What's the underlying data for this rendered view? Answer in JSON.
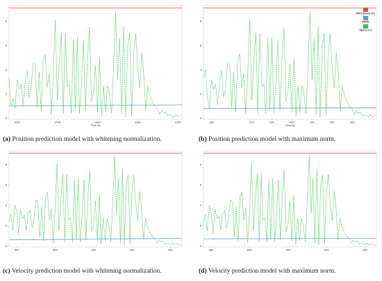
{
  "colors": {
    "max_speed": "#e05050",
    "rmse": "#5aa0c8",
    "speed": "#33cc44"
  },
  "chart_data": [
    {
      "type": "line",
      "id": "a",
      "caption_tag": "(a)",
      "caption_text": " Position prediction model with whitening normalization.",
      "xlabel": "Time (s)",
      "xlim": [
        1416,
        1502
      ],
      "ylim": [
        -0.1,
        9.3
      ],
      "xticks": [
        1420,
        1440,
        1460,
        1480,
        1500
      ],
      "yticks": [
        0,
        2,
        4,
        6,
        8
      ],
      "legend": null,
      "series": [
        {
          "name": "MAX Speed m/s",
          "style": "solid",
          "color_key": "max_speed",
          "x": [
            1416,
            1502
          ],
          "y": [
            9.1,
            9.1
          ]
        },
        {
          "name": "RMSE",
          "style": "solid",
          "color_key": "rmse",
          "x": [
            1416,
            1502
          ],
          "y": [
            1.0,
            1.1
          ]
        },
        {
          "name": "Speed m/s",
          "style": "dashed",
          "color_key": "speed",
          "x": [
            1416,
            1417,
            1418,
            1419,
            1420,
            1421,
            1422,
            1423,
            1424,
            1425,
            1426,
            1427,
            1428,
            1429,
            1430,
            1431,
            1432,
            1433,
            1434,
            1435,
            1436,
            1437,
            1438,
            1439,
            1440,
            1441,
            1442,
            1443,
            1444,
            1445,
            1446,
            1447,
            1448,
            1449,
            1450,
            1451,
            1452,
            1453,
            1454,
            1455,
            1456,
            1457,
            1458,
            1459,
            1460,
            1461,
            1462,
            1463,
            1464,
            1465,
            1466,
            1467,
            1468,
            1469,
            1470,
            1471,
            1472,
            1473,
            1474,
            1475,
            1476,
            1477,
            1478,
            1479,
            1480,
            1481,
            1482,
            1483,
            1484,
            1485,
            1486,
            1487,
            1488,
            1489,
            1490,
            1491,
            1492,
            1493,
            1494,
            1495,
            1496,
            1497,
            1498,
            1499,
            1500,
            1501,
            1502
          ],
          "y": [
            3.3,
            1.0,
            1.6,
            0.8,
            3.2,
            2.4,
            2.8,
            1.1,
            3.0,
            3.9,
            1.7,
            2.5,
            4.6,
            4.5,
            0.9,
            3.8,
            0.5,
            4.8,
            5.3,
            2.5,
            3.7,
            0.3,
            3.6,
            8.1,
            1.5,
            4.7,
            7.1,
            0.4,
            7.0,
            2.6,
            2.8,
            0.4,
            6.5,
            0.7,
            6.6,
            0.4,
            2.9,
            6.5,
            0.6,
            4.7,
            7.5,
            1.4,
            2.1,
            4.4,
            0.5,
            5.0,
            0.2,
            2.7,
            0.5,
            2.7,
            2.0,
            0.4,
            4.3,
            8.8,
            3.2,
            6.6,
            0.3,
            7.6,
            0.1,
            6.0,
            7.0,
            0.2,
            5.3,
            7.0,
            4.1,
            2.5,
            5.4,
            3.7,
            0.6,
            2.7,
            1.9,
            1.5,
            1.1,
            0.9,
            0.7,
            0.3,
            0.6,
            0.4,
            0.5,
            0.2,
            0.3,
            0.2,
            0.1,
            0.3,
            0.1,
            0.2,
            0.2
          ]
        }
      ]
    },
    {
      "type": "line",
      "id": "b",
      "caption_tag": "(b)",
      "caption_text": " Position prediction model with maximum norm.",
      "xlabel": "Time (s)",
      "xlim": [
        386,
        472
      ],
      "ylim": [
        -0.1,
        9.3
      ],
      "xticks": [
        390,
        410,
        420,
        430,
        440,
        450,
        460
      ],
      "yticks": [
        0,
        2,
        4,
        6,
        8
      ],
      "legend": [
        {
          "label": "MAX Speed m/s",
          "color_key": "max_speed"
        },
        {
          "label": "RMSE",
          "color_key": "rmse"
        },
        {
          "label": "Speed m/s",
          "color_key": "speed"
        }
      ],
      "series": [
        {
          "name": "MAX Speed m/s",
          "style": "solid",
          "color_key": "max_speed",
          "x": [
            386,
            472
          ],
          "y": [
            9.1,
            9.1
          ]
        },
        {
          "name": "RMSE",
          "style": "solid",
          "color_key": "rmse",
          "x": [
            386,
            472
          ],
          "y": [
            0.8,
            0.85
          ]
        },
        {
          "name": "Speed m/s",
          "style": "dashed",
          "color_key": "speed",
          "x": [
            386,
            387,
            388,
            389,
            390,
            391,
            392,
            393,
            394,
            395,
            396,
            397,
            398,
            399,
            400,
            401,
            402,
            403,
            404,
            405,
            406,
            407,
            408,
            409,
            410,
            411,
            412,
            413,
            414,
            415,
            416,
            417,
            418,
            419,
            420,
            421,
            422,
            423,
            424,
            425,
            426,
            427,
            428,
            429,
            430,
            431,
            432,
            433,
            434,
            435,
            436,
            437,
            438,
            439,
            440,
            441,
            442,
            443,
            444,
            445,
            446,
            447,
            448,
            449,
            450,
            451,
            452,
            453,
            454,
            455,
            456,
            457,
            458,
            459,
            460,
            461,
            462,
            463,
            464,
            465,
            466,
            467,
            468,
            469,
            470,
            471,
            472
          ],
          "y": [
            3.3,
            4.0,
            1.6,
            0.8,
            3.2,
            2.4,
            2.8,
            1.1,
            3.0,
            3.9,
            1.7,
            2.5,
            4.6,
            4.5,
            0.9,
            3.8,
            0.5,
            4.8,
            5.3,
            2.5,
            3.7,
            0.3,
            3.6,
            8.1,
            1.5,
            4.7,
            7.1,
            0.4,
            7.0,
            2.6,
            2.8,
            0.4,
            6.5,
            0.7,
            6.6,
            0.4,
            2.9,
            6.5,
            0.6,
            4.7,
            7.5,
            1.4,
            2.1,
            4.4,
            0.5,
            5.0,
            0.2,
            2.7,
            0.5,
            2.7,
            2.0,
            0.4,
            4.3,
            8.8,
            3.2,
            6.6,
            0.3,
            7.6,
            0.1,
            6.0,
            7.0,
            0.2,
            5.3,
            7.0,
            4.1,
            2.5,
            5.4,
            3.7,
            0.6,
            2.7,
            1.9,
            1.5,
            1.1,
            0.9,
            0.7,
            0.3,
            0.6,
            0.4,
            0.5,
            0.2,
            0.3,
            0.2,
            0.1,
            0.3,
            0.1,
            0.2,
            0.2
          ]
        }
      ]
    },
    {
      "type": "line",
      "id": "c",
      "caption_tag": "(c)",
      "caption_text": " Velocity prediction model with whitening normalization.",
      "xlabel": "",
      "xlim": [
        856,
        946
      ],
      "ylim": [
        -0.1,
        9.3
      ],
      "xticks": [
        860,
        880,
        900,
        920,
        940
      ],
      "yticks": [
        0,
        2,
        4,
        6,
        8
      ],
      "legend": null,
      "series": [
        {
          "name": "MAX Speed m/s",
          "style": "solid",
          "color_key": "max_speed",
          "x": [
            856,
            946
          ],
          "y": [
            9.1,
            9.1
          ]
        },
        {
          "name": "RMSE",
          "style": "solid",
          "color_key": "rmse",
          "x": [
            856,
            946
          ],
          "y": [
            0.6,
            0.75
          ]
        },
        {
          "name": "Speed m/s",
          "style": "dashed",
          "color_key": "speed",
          "x": [
            856,
            857,
            858,
            859,
            860,
            861,
            862,
            863,
            864,
            865,
            866,
            867,
            868,
            869,
            870,
            871,
            872,
            873,
            874,
            875,
            876,
            877,
            878,
            879,
            880,
            881,
            882,
            883,
            884,
            885,
            886,
            887,
            888,
            889,
            890,
            891,
            892,
            893,
            894,
            895,
            896,
            897,
            898,
            899,
            900,
            901,
            902,
            903,
            904,
            905,
            906,
            907,
            908,
            909,
            910,
            911,
            912,
            913,
            914,
            915,
            916,
            917,
            918,
            919,
            920,
            921,
            922,
            923,
            924,
            925,
            926,
            927,
            928,
            929,
            930,
            931,
            932,
            933,
            934,
            935,
            936,
            937,
            938,
            939,
            940,
            941,
            942,
            943,
            944,
            945,
            946
          ],
          "y": [
            2.4,
            3.1,
            1.5,
            4.0,
            3.4,
            1.2,
            3.6,
            2.7,
            3.0,
            1.5,
            3.2,
            3.5,
            1.8,
            2.6,
            4.5,
            4.4,
            0.9,
            3.8,
            0.5,
            4.8,
            5.3,
            2.5,
            3.7,
            0.3,
            3.6,
            8.1,
            1.5,
            4.7,
            7.1,
            0.4,
            7.0,
            2.6,
            2.8,
            0.4,
            6.5,
            0.7,
            6.6,
            0.4,
            2.9,
            6.5,
            0.6,
            4.7,
            7.5,
            1.4,
            2.1,
            4.4,
            0.5,
            5.0,
            0.2,
            2.7,
            0.5,
            2.7,
            2.0,
            0.4,
            4.3,
            8.8,
            3.2,
            6.6,
            0.3,
            7.6,
            0.1,
            6.0,
            7.0,
            0.2,
            5.3,
            7.0,
            4.1,
            2.5,
            5.4,
            3.7,
            0.6,
            2.7,
            1.9,
            1.5,
            1.1,
            0.9,
            0.7,
            0.3,
            0.6,
            0.4,
            0.5,
            0.2,
            0.3,
            0.2,
            0.1,
            0.3,
            0.1,
            0.2,
            0.2,
            0.1,
            0.1
          ]
        }
      ]
    },
    {
      "type": "line",
      "id": "d",
      "caption_tag": "(d)",
      "caption_text": " Velocity prediction model with maximum norm.",
      "xlabel": "",
      "xlim": [
        856,
        946
      ],
      "ylim": [
        -0.1,
        9.3
      ],
      "xticks": [
        860,
        880,
        900,
        920,
        940
      ],
      "yticks": [
        0,
        2,
        4,
        6,
        8
      ],
      "legend": null,
      "series": [
        {
          "name": "MAX Speed m/s",
          "style": "solid",
          "color_key": "max_speed",
          "x": [
            856,
            946
          ],
          "y": [
            9.1,
            9.1
          ]
        },
        {
          "name": "RMSE",
          "style": "solid",
          "color_key": "rmse",
          "x": [
            856,
            946
          ],
          "y": [
            0.7,
            0.75
          ]
        },
        {
          "name": "Speed m/s",
          "style": "dashed",
          "color_key": "speed",
          "x": [
            856,
            857,
            858,
            859,
            860,
            861,
            862,
            863,
            864,
            865,
            866,
            867,
            868,
            869,
            870,
            871,
            872,
            873,
            874,
            875,
            876,
            877,
            878,
            879,
            880,
            881,
            882,
            883,
            884,
            885,
            886,
            887,
            888,
            889,
            890,
            891,
            892,
            893,
            894,
            895,
            896,
            897,
            898,
            899,
            900,
            901,
            902,
            903,
            904,
            905,
            906,
            907,
            908,
            909,
            910,
            911,
            912,
            913,
            914,
            915,
            916,
            917,
            918,
            919,
            920,
            921,
            922,
            923,
            924,
            925,
            926,
            927,
            928,
            929,
            930,
            931,
            932,
            933,
            934,
            935,
            936,
            937,
            938,
            939,
            940,
            941,
            942,
            943,
            944,
            945,
            946
          ],
          "y": [
            2.4,
            3.1,
            1.5,
            4.0,
            3.4,
            1.2,
            3.6,
            2.7,
            3.0,
            1.5,
            3.2,
            3.5,
            1.8,
            2.6,
            4.5,
            4.4,
            0.9,
            3.8,
            0.5,
            4.8,
            5.3,
            2.5,
            3.7,
            0.3,
            3.6,
            8.1,
            1.5,
            4.7,
            7.1,
            0.4,
            7.0,
            2.6,
            2.8,
            0.4,
            6.5,
            0.7,
            6.6,
            0.4,
            2.9,
            6.5,
            0.6,
            4.7,
            7.5,
            1.4,
            2.1,
            4.4,
            0.5,
            5.0,
            0.2,
            2.7,
            0.5,
            2.7,
            2.0,
            0.4,
            4.3,
            8.8,
            3.2,
            6.6,
            0.3,
            7.6,
            0.1,
            6.0,
            7.0,
            0.2,
            5.3,
            7.0,
            4.1,
            2.5,
            5.4,
            3.7,
            0.6,
            2.7,
            1.9,
            1.5,
            1.1,
            0.9,
            0.7,
            0.3,
            0.6,
            0.4,
            0.5,
            0.2,
            0.3,
            0.2,
            0.1,
            0.3,
            0.1,
            0.2,
            0.2,
            0.1,
            0.1
          ]
        }
      ]
    }
  ]
}
